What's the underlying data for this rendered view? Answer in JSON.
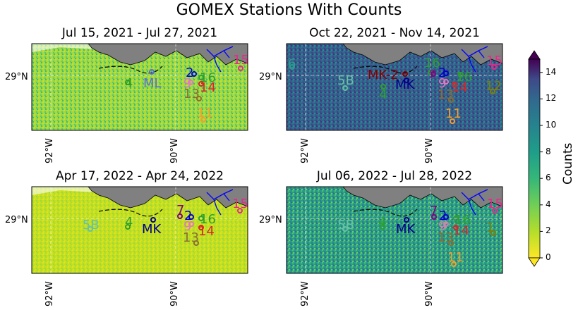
{
  "title": "GOMEX Stations With Counts",
  "colorbar": {
    "label": "Counts",
    "ticks": [
      "0",
      "2",
      "4",
      "6",
      "8",
      "10",
      "12",
      "14"
    ],
    "min": 0,
    "max": 15,
    "colormap": "viridis_r",
    "extend": "both"
  },
  "colors": {
    "land": "#808080",
    "river": "#0000ff",
    "grid": "#ffffff",
    "station_colors": {
      "4": "#2ca02c",
      "ML": "#5b6fd6",
      "2": "#0000cc",
      "16": "#2ca02c",
      "9": "#e377c2",
      "13": "#8c6d31",
      "14": "#d62728",
      "11": "#f0a030",
      "15": "#e7298a",
      "6": "#2a9d8f",
      "5B": "#66c2a5",
      "MK": "#00008b",
      "MK-2": "#800000",
      "7": "#800080",
      "12": "#808000",
      "1": "#808000"
    }
  },
  "panels": [
    {
      "title": "Jul 15, 2021 - Jul 27, 2021",
      "lat_label": "29°N",
      "lon_labels": [
        "92°W",
        "90°W"
      ],
      "field_level": "low",
      "stations": [
        "4",
        "ML",
        "2",
        "16",
        "9",
        "14",
        "13",
        "11",
        "15"
      ]
    },
    {
      "title": "Oct 22, 2021 - Nov 14, 2021",
      "lat_label": "29°N",
      "lon_labels": [
        "92°W",
        "90°W"
      ],
      "field_level": "high",
      "stations": [
        "6",
        "5B",
        "MK-2",
        "MK",
        "4",
        "16",
        "7",
        "2",
        "9",
        "14",
        "13",
        "16b",
        "15",
        "12",
        "11"
      ]
    },
    {
      "title": "Apr 17, 2022 - Apr 24, 2022",
      "lat_label": "29°N",
      "lon_labels": [
        "92°W",
        "90°W"
      ],
      "field_level": "very-low",
      "stations": [
        "5B",
        "4",
        "MK",
        "7",
        "2",
        "16",
        "9",
        "14",
        "13",
        "15"
      ]
    },
    {
      "title": "Jul 06, 2022 - Jul 28, 2022",
      "lat_label": "29°N",
      "lon_labels": [
        "92°W",
        "90°W"
      ],
      "field_level": "medium",
      "stations": [
        "5B",
        "4",
        "MK",
        "7",
        "2",
        "16",
        "9",
        "14",
        "13",
        "11",
        "15",
        "1"
      ]
    }
  ]
}
